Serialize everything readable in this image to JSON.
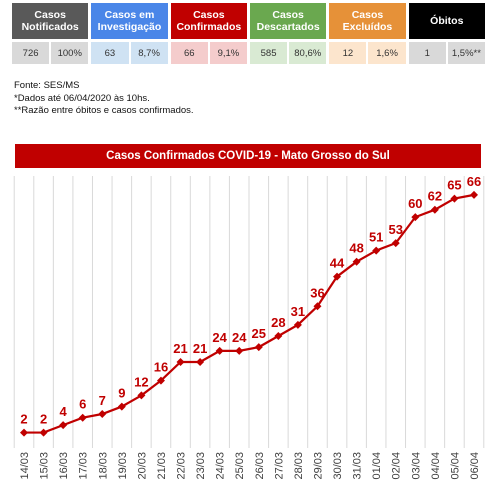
{
  "summary": {
    "headers": [
      {
        "label": "Casos\nNotificados",
        "color": "#595959"
      },
      {
        "label": "Casos em\nInvestigação",
        "color": "#4a86e8"
      },
      {
        "label": "Casos\nConfirmados",
        "color": "#c00000"
      },
      {
        "label": "Casos\nDescartados",
        "color": "#6aa84f"
      },
      {
        "label": "Casos\nExcluídos",
        "color": "#e69138"
      },
      {
        "label": "Óbitos",
        "color": "#000000"
      }
    ],
    "values": [
      {
        "count": "726",
        "pct": "100%",
        "bg": "#d9d9d9"
      },
      {
        "count": "63",
        "pct": "8,7%",
        "bg": "#cfe2f3"
      },
      {
        "count": "66",
        "pct": "9,1%",
        "bg": "#f4cccc"
      },
      {
        "count": "585",
        "pct": "80,6%",
        "bg": "#d9ead3"
      },
      {
        "count": "12",
        "pct": "1,6%",
        "bg": "#fce5cd"
      },
      {
        "count": "1",
        "pct": "1,5%**",
        "bg": "#d9d9d9"
      }
    ]
  },
  "notes": {
    "source": "Fonte: SES/MS",
    "date_note": "*Dados até 06/04/2020 às 10hs.",
    "ratio_note": "**Razão entre óbitos e casos confirmados."
  },
  "chart_data": {
    "type": "line",
    "title": "Casos Confirmados COVID-19 -  Mato Grosso do Sul",
    "categories": [
      "14/03",
      "15/03",
      "16/03",
      "17/03",
      "18/03",
      "19/03",
      "20/03",
      "21/03",
      "22/03",
      "23/03",
      "24/03",
      "25/03",
      "26/03",
      "27/03",
      "28/03",
      "29/03",
      "30/03",
      "31/03",
      "01/04",
      "02/04",
      "03/04",
      "04/04",
      "05/04",
      "06/04"
    ],
    "series": [
      {
        "values": [
          2,
          2,
          4,
          6,
          7,
          9,
          12,
          16,
          21,
          21,
          24,
          24,
          25,
          28,
          31,
          36,
          44,
          48,
          51,
          53,
          60,
          62,
          65,
          66
        ]
      }
    ],
    "xlabel": "",
    "ylabel": "",
    "ylim": [
      0,
      70
    ],
    "grid": "vertical",
    "color": "#c00000"
  }
}
